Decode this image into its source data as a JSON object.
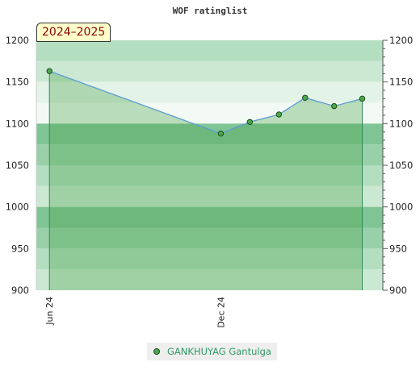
{
  "chart_data": {
    "type": "area",
    "title": "WOF ratinglist",
    "season_label": "2024–2025",
    "ylim": [
      900,
      1200
    ],
    "yticks": [
      900,
      950,
      1000,
      1050,
      1100,
      1150,
      1200
    ],
    "ytick_labels": [
      "900",
      "950",
      "1000",
      "1050",
      "1100",
      "1150",
      "1200"
    ],
    "xticks": [
      {
        "date": "2024-06-01",
        "label": "Jun 24"
      },
      {
        "date": "2024-12-01",
        "label": "Dec 24"
      }
    ],
    "xlim": [
      "2024-05-18",
      "2025-05-23"
    ],
    "series": [
      {
        "name": "GANKHUYAG Gantulga",
        "color": "#4da64d",
        "points": [
          {
            "date": "2024-06-01",
            "y": 1163
          },
          {
            "date": "2024-12-01",
            "y": 1088
          },
          {
            "date": "2025-01-01",
            "y": 1102
          },
          {
            "date": "2025-02-01",
            "y": 1111
          },
          {
            "date": "2025-03-01",
            "y": 1131
          },
          {
            "date": "2025-04-01",
            "y": 1121
          },
          {
            "date": "2025-05-01",
            "y": 1130
          }
        ]
      }
    ],
    "bands": [
      {
        "from": 1175,
        "to": 1200,
        "color": "#b3dec0"
      },
      {
        "from": 1150,
        "to": 1175,
        "color": "#cbe8d3"
      },
      {
        "from": 1125,
        "to": 1150,
        "color": "#e3f3e8"
      },
      {
        "from": 1100,
        "to": 1125,
        "color": "#f3faf5"
      },
      {
        "from": 1075,
        "to": 1100,
        "color": "#7fc495"
      },
      {
        "from": 1050,
        "to": 1075,
        "color": "#99d0a9"
      },
      {
        "from": 1025,
        "to": 1050,
        "color": "#b3dec0"
      },
      {
        "from": 1000,
        "to": 1025,
        "color": "#cbe8d3"
      },
      {
        "from": 975,
        "to": 1000,
        "color": "#7fc495"
      },
      {
        "from": 950,
        "to": 975,
        "color": "#99d0a9"
      },
      {
        "from": 925,
        "to": 950,
        "color": "#b3dec0"
      },
      {
        "from": 900,
        "to": 925,
        "color": "#cbe8d3"
      }
    ],
    "legend_position": "bottom"
  }
}
